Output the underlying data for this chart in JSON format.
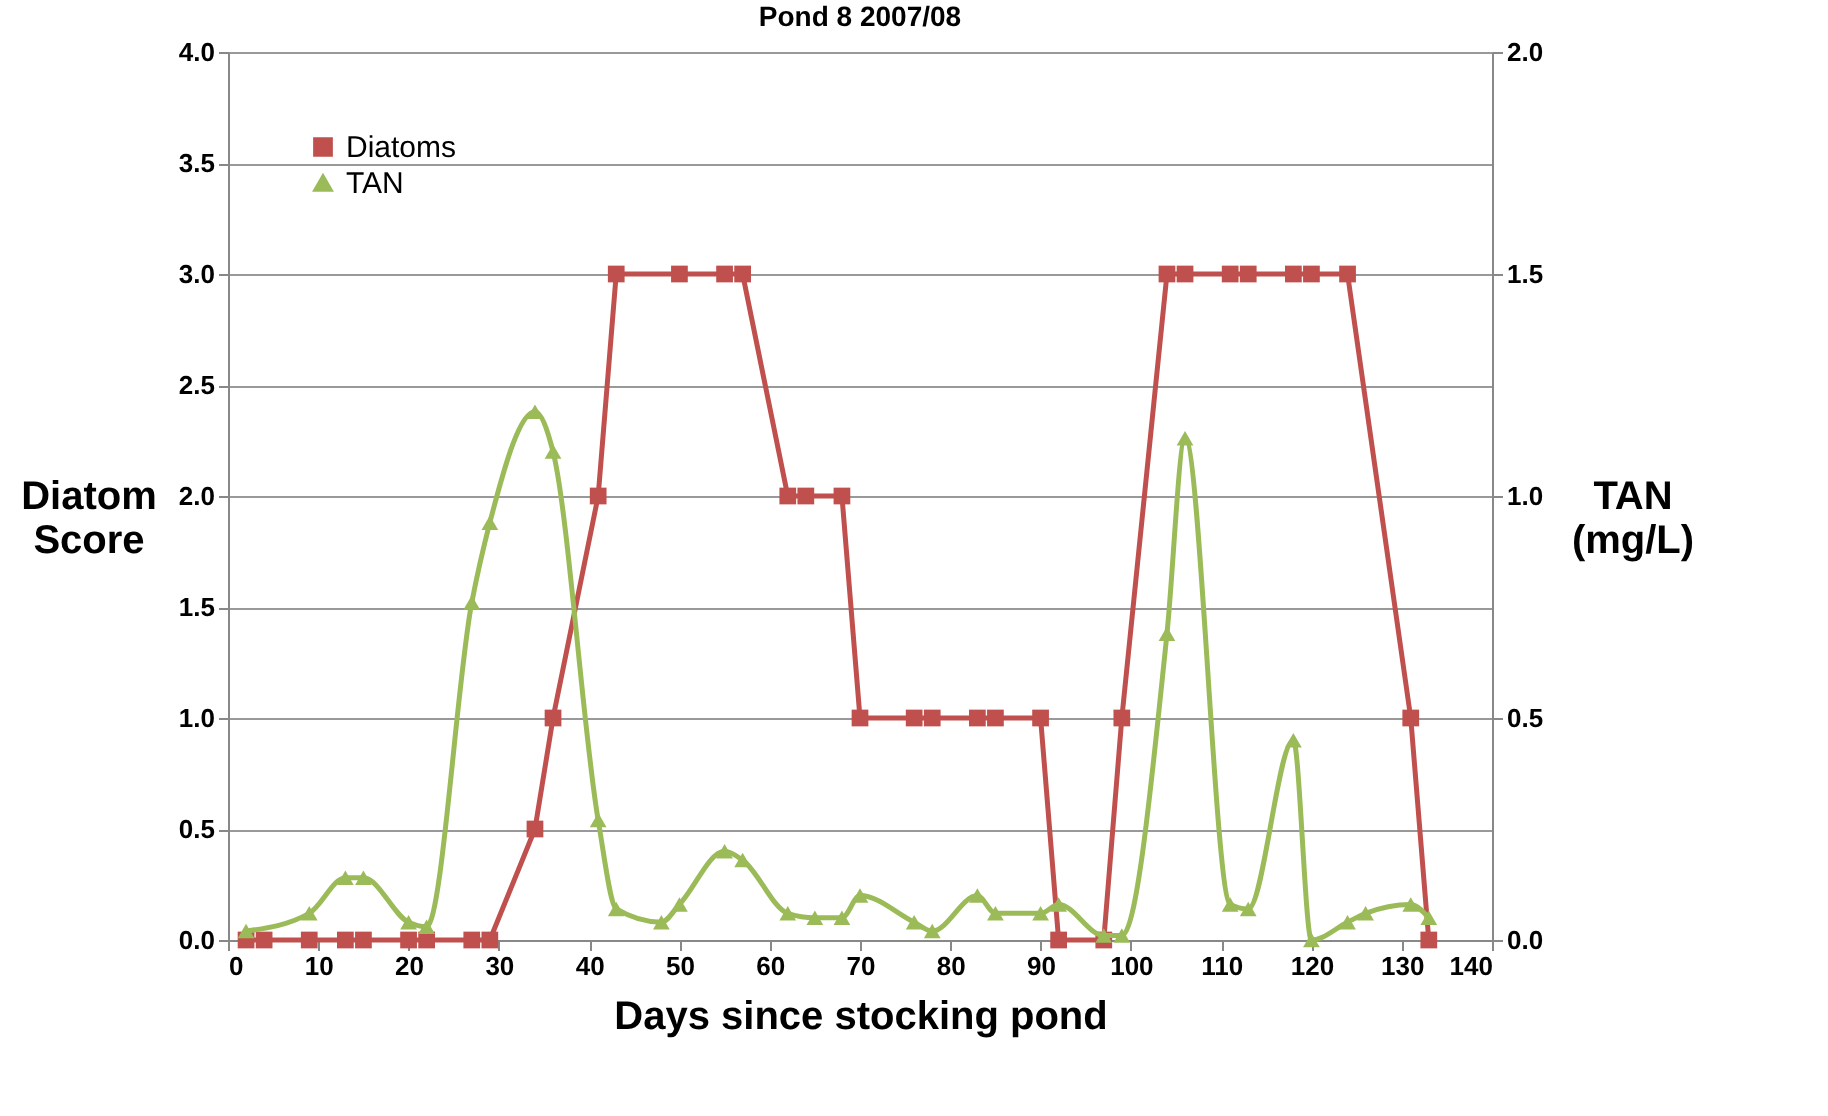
{
  "chart_data": {
    "type": "line",
    "title": "Pond 8   2007/08",
    "xlabel": "Days since stocking pond",
    "ylabel": "Diatom\nScore",
    "y2label": "TAN\n(mg/L)",
    "xlim": [
      0,
      140
    ],
    "xticks": [
      0,
      10,
      20,
      30,
      40,
      50,
      60,
      70,
      80,
      90,
      100,
      110,
      120,
      130,
      140
    ],
    "ylim": [
      0,
      4
    ],
    "yticks": [
      {
        "value": 0,
        "label": "0.0"
      },
      {
        "value": 0.5,
        "label": "0.5"
      },
      {
        "value": 1,
        "label": "1.0"
      },
      {
        "value": 1.5,
        "label": "1.5"
      },
      {
        "value": 2,
        "label": "2.0"
      },
      {
        "value": 2.5,
        "label": "2.5"
      },
      {
        "value": 3,
        "label": "3.0"
      },
      {
        "value": 3.5,
        "label": "3.5"
      },
      {
        "value": 4,
        "label": "4.0"
      }
    ],
    "y2lim": [
      0,
      2
    ],
    "y2ticks": [
      {
        "value": 0,
        "label": "0.0"
      },
      {
        "value": 0.5,
        "label": "0.5"
      },
      {
        "value": 1,
        "label": "1.0"
      },
      {
        "value": 1.5,
        "label": "1.5"
      },
      {
        "value": 2,
        "label": "2.0"
      }
    ],
    "grid": "y",
    "legend": "top left",
    "series": [
      {
        "name": "Diatoms",
        "color": "#c0504d",
        "marker": "square",
        "x": [
          2,
          4,
          9,
          13,
          15,
          20,
          22,
          27,
          29,
          34,
          36,
          41,
          43,
          50,
          55,
          57,
          62,
          64,
          68,
          70,
          76,
          78,
          83,
          85,
          90,
          92,
          97,
          99,
          104,
          106,
          111,
          113,
          118,
          120,
          124,
          131,
          133
        ],
        "values": [
          0,
          0,
          0,
          0,
          0,
          0,
          0,
          0,
          0,
          0.5,
          1,
          2,
          3,
          3,
          3,
          3,
          2,
          2,
          2,
          1,
          1,
          1,
          1,
          1,
          1,
          0,
          0,
          1,
          3,
          3,
          3,
          3,
          3,
          3,
          3,
          1,
          0
        ]
      },
      {
        "name": "TAN",
        "color": "#9bbb59",
        "marker": "triangle",
        "axis": "y2",
        "x": [
          2,
          9,
          13,
          15,
          20,
          22,
          27,
          29,
          34,
          36,
          41,
          43,
          48,
          50,
          55,
          57,
          62,
          65,
          68,
          70,
          76,
          78,
          83,
          85,
          90,
          92,
          97,
          99,
          104,
          106,
          111,
          113,
          118,
          120,
          124,
          126,
          131,
          133
        ],
        "values": [
          0.02,
          0.06,
          0.14,
          0.14,
          0.04,
          0.03,
          0.76,
          0.94,
          1.19,
          1.1,
          0.27,
          0.07,
          0.04,
          0.08,
          0.2,
          0.18,
          0.06,
          0.05,
          0.05,
          0.1,
          0.04,
          0.02,
          0.1,
          0.06,
          0.06,
          0.08,
          0.01,
          0.01,
          0.69,
          1.13,
          0.08,
          0.07,
          0.45,
          0.0,
          0.04,
          0.06,
          0.08,
          0.05
        ]
      }
    ]
  }
}
